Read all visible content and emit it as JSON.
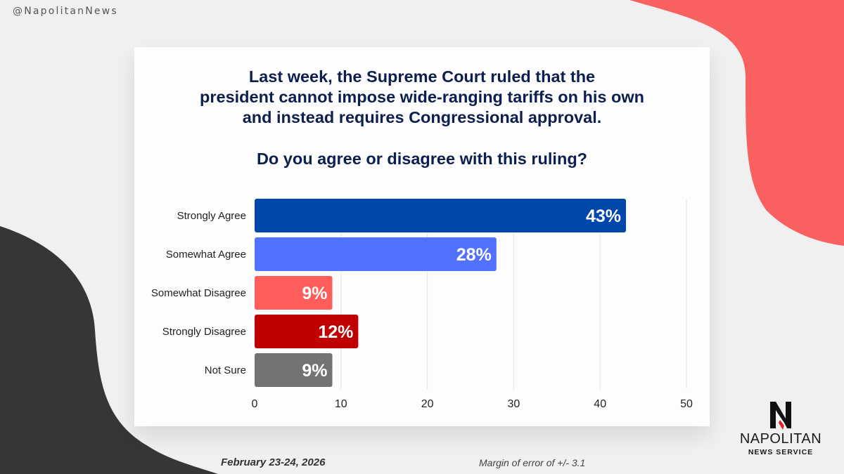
{
  "handle": "@NapolitanNews",
  "title_lines": [
    "Last week, the Supreme Court ruled that the",
    "president cannot impose wide-ranging tariffs on his own",
    "and instead requires Congressional approval."
  ],
  "question": "Do you agree or disagree with this ruling?",
  "footer": {
    "date": "February 23-24, 2026",
    "margin_of_error": "Margin of error of +/- 3.1"
  },
  "logo": {
    "icon": "napolitan-n-icon",
    "name": "NAPOLITAN",
    "subtitle": "NEWS SERVICE"
  },
  "colors": {
    "background": "#f0f0f0",
    "coral_shape": "#f96060",
    "dark_shape": "#363636",
    "title": "#0c1f4f"
  },
  "chart_data": {
    "type": "bar",
    "orientation": "horizontal",
    "title": "Do you agree or disagree with this ruling?",
    "categories": [
      "Strongly Agree",
      "Somewhat Agree",
      "Somewhat Disagree",
      "Strongly Disagree",
      "Not Sure"
    ],
    "values": [
      43,
      28,
      9,
      12,
      9
    ],
    "value_labels": [
      "43%",
      "28%",
      "9%",
      "12%",
      "9%"
    ],
    "bar_colors": [
      "#0047ab",
      "#5271ff",
      "#ff5c5c",
      "#c00000",
      "#737373"
    ],
    "xlim": [
      0,
      50
    ],
    "xticks": [
      0,
      10,
      20,
      30,
      40,
      50
    ],
    "xlabel": "",
    "ylabel": "",
    "grid": true,
    "legend": "none"
  }
}
